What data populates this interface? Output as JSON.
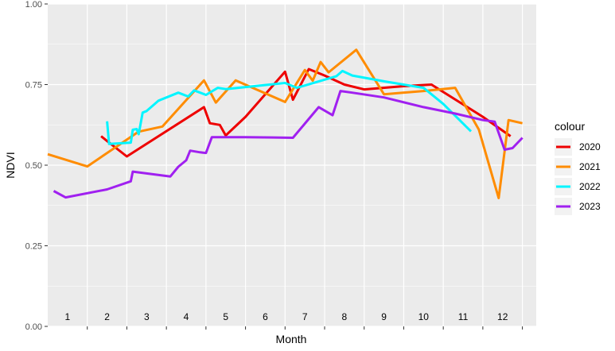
{
  "chart_data": {
    "type": "line",
    "xlabel": "Month",
    "ylabel": "NDVI",
    "xlim": [
      0.5,
      12.85
    ],
    "ylim": [
      0,
      1
    ],
    "yticks": [
      0.0,
      0.25,
      0.5,
      0.75,
      1.0
    ],
    "ytick_labels": [
      "0.00",
      "0.25",
      "0.50",
      "0.75",
      "1.00"
    ],
    "month_labels": [
      "1",
      "2",
      "3",
      "4",
      "5",
      "6",
      "7",
      "8",
      "9",
      "10",
      "11",
      "12"
    ],
    "month_label_y": 0.02,
    "grid": true,
    "legend": {
      "title": "colour",
      "position": "right"
    },
    "series": [
      {
        "name": "2020",
        "color": "#ee0000",
        "points": [
          [
            1.85,
            0.59
          ],
          [
            2.0,
            0.575
          ],
          [
            2.5,
            0.527
          ],
          [
            4.45,
            0.68
          ],
          [
            4.6,
            0.63
          ],
          [
            4.85,
            0.625
          ],
          [
            5.0,
            0.592
          ],
          [
            5.5,
            0.65
          ],
          [
            6.5,
            0.79
          ],
          [
            6.7,
            0.703
          ],
          [
            7.1,
            0.798
          ],
          [
            7.5,
            0.778
          ],
          [
            8.0,
            0.75
          ],
          [
            8.5,
            0.735
          ],
          [
            9.5,
            0.745
          ],
          [
            10.2,
            0.75
          ],
          [
            11.5,
            0.65
          ],
          [
            12.2,
            0.59
          ]
        ]
      },
      {
        "name": "2021",
        "color": "#ff8c00",
        "points": [
          [
            0.5,
            0.534
          ],
          [
            1.5,
            0.496
          ],
          [
            2.8,
            0.604
          ],
          [
            3.4,
            0.62
          ],
          [
            4.45,
            0.763
          ],
          [
            4.75,
            0.694
          ],
          [
            5.25,
            0.763
          ],
          [
            6.5,
            0.696
          ],
          [
            7.0,
            0.795
          ],
          [
            7.2,
            0.762
          ],
          [
            7.4,
            0.82
          ],
          [
            7.6,
            0.788
          ],
          [
            8.3,
            0.858
          ],
          [
            9.0,
            0.72
          ],
          [
            10.0,
            0.73
          ],
          [
            10.8,
            0.74
          ],
          [
            11.4,
            0.61
          ],
          [
            11.9,
            0.398
          ],
          [
            12.15,
            0.64
          ],
          [
            12.5,
            0.63
          ]
        ]
      },
      {
        "name": "2022",
        "color": "#00f5ff",
        "points": [
          [
            2.0,
            0.636
          ],
          [
            2.05,
            0.566
          ],
          [
            2.6,
            0.57
          ],
          [
            2.65,
            0.61
          ],
          [
            2.75,
            0.612
          ],
          [
            2.8,
            0.596
          ],
          [
            2.9,
            0.663
          ],
          [
            3.0,
            0.668
          ],
          [
            3.3,
            0.7
          ],
          [
            3.8,
            0.725
          ],
          [
            4.05,
            0.713
          ],
          [
            4.2,
            0.732
          ],
          [
            4.5,
            0.718
          ],
          [
            4.8,
            0.74
          ],
          [
            5.0,
            0.736
          ],
          [
            6.5,
            0.755
          ],
          [
            6.8,
            0.74
          ],
          [
            7.8,
            0.776
          ],
          [
            7.95,
            0.792
          ],
          [
            8.2,
            0.778
          ],
          [
            9.0,
            0.76
          ],
          [
            9.5,
            0.75
          ],
          [
            10.0,
            0.74
          ],
          [
            10.5,
            0.69
          ],
          [
            11.2,
            0.605
          ]
        ]
      },
      {
        "name": "2023",
        "color": "#a020f0",
        "points": [
          [
            0.65,
            0.42
          ],
          [
            0.95,
            0.4
          ],
          [
            2.0,
            0.425
          ],
          [
            2.6,
            0.45
          ],
          [
            2.65,
            0.48
          ],
          [
            3.6,
            0.465
          ],
          [
            3.8,
            0.495
          ],
          [
            4.0,
            0.515
          ],
          [
            4.1,
            0.545
          ],
          [
            4.35,
            0.54
          ],
          [
            4.5,
            0.538
          ],
          [
            4.65,
            0.587
          ],
          [
            5.5,
            0.587
          ],
          [
            6.2,
            0.586
          ],
          [
            6.7,
            0.585
          ],
          [
            7.35,
            0.68
          ],
          [
            7.7,
            0.655
          ],
          [
            7.9,
            0.73
          ],
          [
            8.2,
            0.725
          ],
          [
            9.0,
            0.71
          ],
          [
            10.0,
            0.68
          ],
          [
            10.8,
            0.66
          ],
          [
            11.5,
            0.64
          ],
          [
            11.8,
            0.635
          ],
          [
            12.05,
            0.548
          ],
          [
            12.25,
            0.553
          ],
          [
            12.5,
            0.585
          ]
        ]
      }
    ]
  }
}
